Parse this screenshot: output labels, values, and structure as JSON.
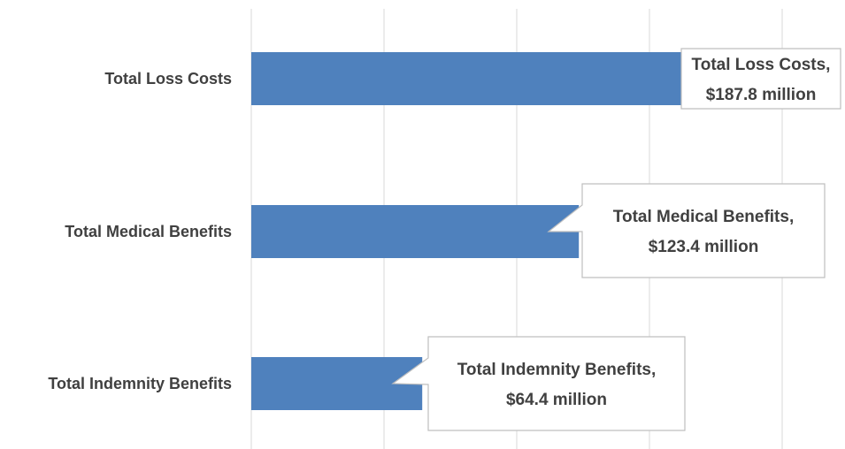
{
  "chart_data": {
    "type": "bar",
    "orientation": "horizontal",
    "categories": [
      "Total Loss Costs",
      "Total Medical Benefits",
      "Total Indemnity Benefits"
    ],
    "values": [
      187.8,
      123.4,
      64.4
    ],
    "data_labels": [
      [
        "Total Loss Costs,",
        "$187.8 million"
      ],
      [
        "Total Medical Benefits,",
        "$123.4 million"
      ],
      [
        "Total Indemnity Benefits,",
        "$64.4 million"
      ]
    ],
    "xlim": [
      0,
      225
    ],
    "grid": true,
    "colors": {
      "bar": "#4f81bd",
      "grid": "#d9d9d9",
      "text": "#404040",
      "callout_border": "#bfbfbf"
    }
  }
}
